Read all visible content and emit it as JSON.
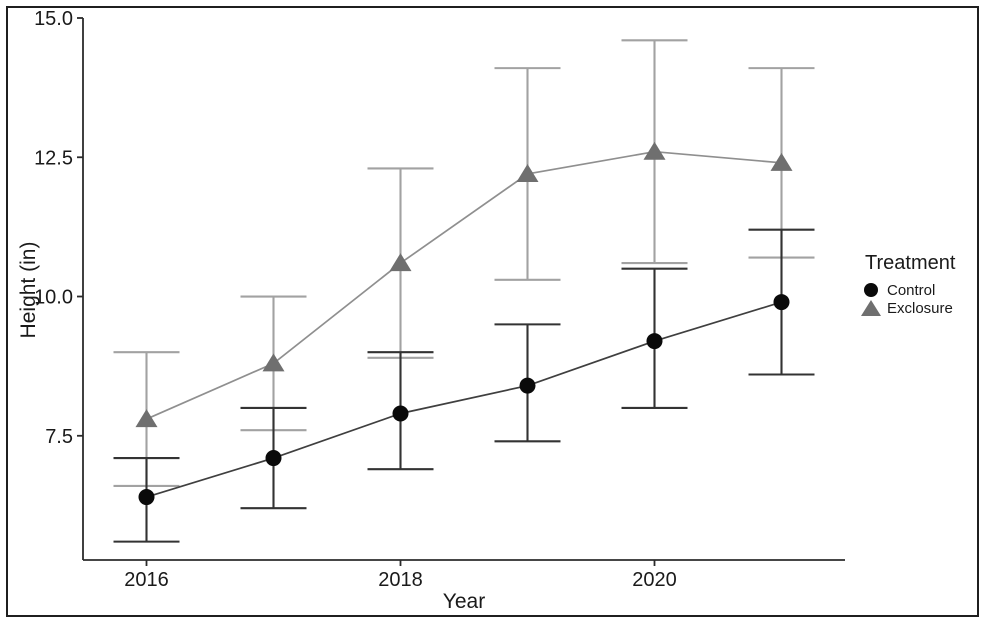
{
  "chart_data": {
    "type": "line",
    "title": "",
    "xlabel": "Year",
    "ylabel": "Height (in)",
    "xlim": [
      2015.5,
      2021.5
    ],
    "ylim": [
      5.27,
      15.0
    ],
    "grid": false,
    "background": "#ffffff",
    "axis_color": "#2b2b2b",
    "text_color": "#1a1a1a",
    "x_ticks": {
      "values": [
        2016,
        2018,
        2020
      ],
      "labels": [
        "2016",
        "2018",
        "2020"
      ]
    },
    "y_ticks": {
      "values": [
        7.5,
        10.0,
        12.5,
        15.0
      ],
      "labels": [
        "7.5",
        "10.0",
        "12.5",
        "15.0"
      ]
    },
    "x": [
      2016,
      2017,
      2018,
      2019,
      2020,
      2021
    ],
    "legend": {
      "title": "Treatment",
      "position": "right"
    },
    "series": [
      {
        "name": "Exclosure",
        "marker": "triangle",
        "marker_color": "#6f6f6f",
        "line_color": "#8f8f8f",
        "error_color": "#a2a2a2",
        "values": [
          7.8,
          8.8,
          10.6,
          12.2,
          12.6,
          12.4
        ],
        "error_low": [
          6.6,
          7.6,
          8.9,
          10.3,
          10.6,
          10.7
        ],
        "error_high": [
          9.0,
          10.0,
          12.3,
          14.1,
          14.6,
          14.1
        ]
      },
      {
        "name": "Control",
        "marker": "circle",
        "marker_color": "#0a0a0a",
        "line_color": "#3f3f3f",
        "error_color": "#333333",
        "values": [
          6.4,
          7.1,
          7.9,
          8.4,
          9.2,
          9.9
        ],
        "error_low": [
          5.6,
          6.2,
          6.9,
          7.4,
          8.0,
          8.6
        ],
        "error_high": [
          7.1,
          8.0,
          9.0,
          9.5,
          10.5,
          11.2
        ]
      }
    ]
  }
}
